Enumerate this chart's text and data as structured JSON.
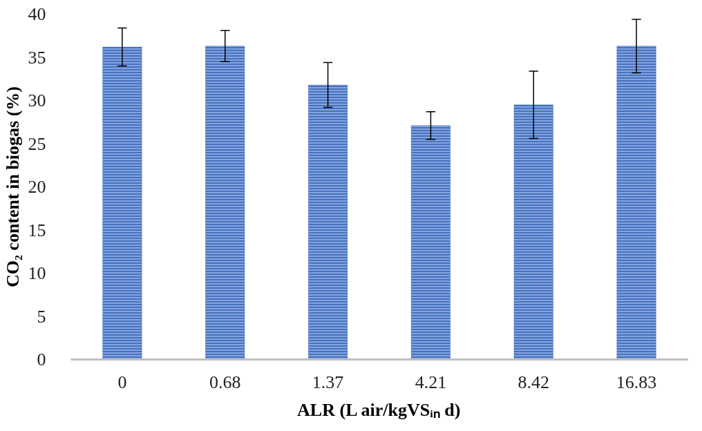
{
  "chart_data": {
    "type": "bar",
    "xlabel": "ALR (L air/kgVSᵢₙ d)",
    "ylabel": "CO₂ content in biogas (%)",
    "categories": [
      "0",
      "0.68",
      "1.37",
      "4.21",
      "8.42",
      "16.83"
    ],
    "values": [
      36.2,
      36.3,
      31.8,
      27.1,
      29.5,
      36.3
    ],
    "errors": [
      2.2,
      1.8,
      2.6,
      1.6,
      3.9,
      3.1
    ],
    "color": "#4472c4",
    "ylim": [
      0,
      40
    ],
    "yticks": [
      0,
      5,
      10,
      15,
      20,
      25,
      30,
      35,
      40
    ],
    "grid": false
  }
}
